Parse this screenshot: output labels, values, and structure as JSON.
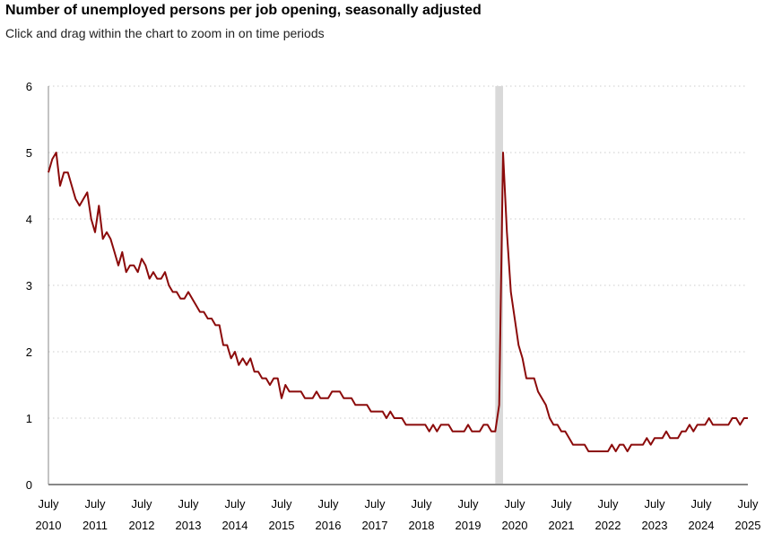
{
  "header": {
    "title": "Number of unemployed persons per job opening, seasonally adjusted",
    "subtitle": "Click and drag within the chart to zoom in on time periods"
  },
  "colors": {
    "line": "#8b0a0a",
    "recession": "#d9d9d9",
    "grid": "#cccccc",
    "axis": "#888888"
  },
  "chart_data": {
    "type": "line",
    "title": "Number of unemployed persons per job opening, seasonally adjusted",
    "subtitle": "Click and drag within the chart to zoom in on time periods",
    "xlabel": "",
    "ylabel": "",
    "ylim": [
      0,
      6
    ],
    "xlim": [
      "2010-07",
      "2025-07"
    ],
    "grid": true,
    "grid_style": "dotted horizontal",
    "legend": "none",
    "yticks": [
      "0",
      "1",
      "2",
      "3",
      "4",
      "5",
      "6"
    ],
    "xticks": [
      {
        "month": "July",
        "year": "2010",
        "date": "2010-07"
      },
      {
        "month": "July",
        "year": "2011",
        "date": "2011-07"
      },
      {
        "month": "July",
        "year": "2012",
        "date": "2012-07"
      },
      {
        "month": "July",
        "year": "2013",
        "date": "2013-07"
      },
      {
        "month": "July",
        "year": "2014",
        "date": "2014-07"
      },
      {
        "month": "July",
        "year": "2015",
        "date": "2015-07"
      },
      {
        "month": "July",
        "year": "2016",
        "date": "2016-07"
      },
      {
        "month": "July",
        "year": "2017",
        "date": "2017-07"
      },
      {
        "month": "July",
        "year": "2018",
        "date": "2018-07"
      },
      {
        "month": "July",
        "year": "2019",
        "date": "2019-07"
      },
      {
        "month": "July",
        "year": "2020",
        "date": "2020-07"
      },
      {
        "month": "July",
        "year": "2021",
        "date": "2021-07"
      },
      {
        "month": "July",
        "year": "2022",
        "date": "2022-07"
      },
      {
        "month": "July",
        "year": "2023",
        "date": "2023-07"
      },
      {
        "month": "July",
        "year": "2024",
        "date": "2024-07"
      },
      {
        "month": "July",
        "year": "2025",
        "date": "2025-07"
      }
    ],
    "recession_band": {
      "start": "2020-02",
      "end": "2020-04"
    },
    "series": [
      {
        "x": [
          "2010-07",
          "2010-08",
          "2010-09",
          "2010-10",
          "2010-11",
          "2010-12",
          "2011-01",
          "2011-02",
          "2011-03",
          "2011-04",
          "2011-05",
          "2011-06",
          "2011-07",
          "2011-08",
          "2011-09",
          "2011-10",
          "2011-11",
          "2011-12",
          "2012-01",
          "2012-02",
          "2012-03",
          "2012-04",
          "2012-05",
          "2012-06",
          "2012-07",
          "2012-08",
          "2012-09",
          "2012-10",
          "2012-11",
          "2012-12",
          "2013-01",
          "2013-02",
          "2013-03",
          "2013-04",
          "2013-05",
          "2013-06",
          "2013-07",
          "2013-08",
          "2013-09",
          "2013-10",
          "2013-11",
          "2013-12",
          "2014-01",
          "2014-02",
          "2014-03",
          "2014-04",
          "2014-05",
          "2014-06",
          "2014-07",
          "2014-08",
          "2014-09",
          "2014-10",
          "2014-11",
          "2014-12",
          "2015-01",
          "2015-02",
          "2015-03",
          "2015-04",
          "2015-05",
          "2015-06",
          "2015-07",
          "2015-08",
          "2015-09",
          "2015-10",
          "2015-11",
          "2015-12",
          "2016-01",
          "2016-02",
          "2016-03",
          "2016-04",
          "2016-05",
          "2016-06",
          "2016-07",
          "2016-08",
          "2016-09",
          "2016-10",
          "2016-11",
          "2016-12",
          "2017-01",
          "2017-02",
          "2017-03",
          "2017-04",
          "2017-05",
          "2017-06",
          "2017-07",
          "2017-08",
          "2017-09",
          "2017-10",
          "2017-11",
          "2017-12",
          "2018-01",
          "2018-02",
          "2018-03",
          "2018-04",
          "2018-05",
          "2018-06",
          "2018-07",
          "2018-08",
          "2018-09",
          "2018-10",
          "2018-11",
          "2018-12",
          "2019-01",
          "2019-02",
          "2019-03",
          "2019-04",
          "2019-05",
          "2019-06",
          "2019-07",
          "2019-08",
          "2019-09",
          "2019-10",
          "2019-11",
          "2019-12",
          "2020-01",
          "2020-02",
          "2020-03",
          "2020-04",
          "2020-05",
          "2020-06",
          "2020-07",
          "2020-08",
          "2020-09",
          "2020-10",
          "2020-11",
          "2020-12",
          "2021-01",
          "2021-02",
          "2021-03",
          "2021-04",
          "2021-05",
          "2021-06",
          "2021-07",
          "2021-08",
          "2021-09",
          "2021-10",
          "2021-11",
          "2021-12",
          "2022-01",
          "2022-02",
          "2022-03",
          "2022-04",
          "2022-05",
          "2022-06",
          "2022-07",
          "2022-08",
          "2022-09",
          "2022-10",
          "2022-11",
          "2022-12",
          "2023-01",
          "2023-02",
          "2023-03",
          "2023-04",
          "2023-05",
          "2023-06",
          "2023-07",
          "2023-08",
          "2023-09",
          "2023-10",
          "2023-11",
          "2023-12",
          "2024-01",
          "2024-02",
          "2024-03",
          "2024-04",
          "2024-05",
          "2024-06",
          "2024-07",
          "2024-08",
          "2024-09",
          "2024-10",
          "2024-11",
          "2024-12",
          "2025-01",
          "2025-02",
          "2025-03",
          "2025-04",
          "2025-05",
          "2025-06",
          "2025-07"
        ],
        "values": [
          4.7,
          4.9,
          5.0,
          4.5,
          4.7,
          4.7,
          4.5,
          4.3,
          4.2,
          4.3,
          4.4,
          4.0,
          3.8,
          4.2,
          3.7,
          3.8,
          3.7,
          3.5,
          3.3,
          3.5,
          3.2,
          3.3,
          3.3,
          3.2,
          3.4,
          3.3,
          3.1,
          3.2,
          3.1,
          3.1,
          3.2,
          3.0,
          2.9,
          2.9,
          2.8,
          2.8,
          2.9,
          2.8,
          2.7,
          2.6,
          2.6,
          2.5,
          2.5,
          2.4,
          2.4,
          2.1,
          2.1,
          1.9,
          2.0,
          1.8,
          1.9,
          1.8,
          1.9,
          1.7,
          1.7,
          1.6,
          1.6,
          1.5,
          1.6,
          1.6,
          1.3,
          1.5,
          1.4,
          1.4,
          1.4,
          1.4,
          1.3,
          1.3,
          1.3,
          1.4,
          1.3,
          1.3,
          1.3,
          1.4,
          1.4,
          1.4,
          1.3,
          1.3,
          1.3,
          1.2,
          1.2,
          1.2,
          1.2,
          1.1,
          1.1,
          1.1,
          1.1,
          1.0,
          1.1,
          1.0,
          1.0,
          1.0,
          0.9,
          0.9,
          0.9,
          0.9,
          0.9,
          0.9,
          0.8,
          0.9,
          0.8,
          0.9,
          0.9,
          0.9,
          0.8,
          0.8,
          0.8,
          0.8,
          0.9,
          0.8,
          0.8,
          0.8,
          0.9,
          0.9,
          0.8,
          0.8,
          1.2,
          5.0,
          3.8,
          2.9,
          2.5,
          2.1,
          1.9,
          1.6,
          1.6,
          1.6,
          1.4,
          1.3,
          1.2,
          1.0,
          0.9,
          0.9,
          0.8,
          0.8,
          0.7,
          0.6,
          0.6,
          0.6,
          0.6,
          0.5,
          0.5,
          0.5,
          0.5,
          0.5,
          0.5,
          0.6,
          0.5,
          0.6,
          0.6,
          0.5,
          0.6,
          0.6,
          0.6,
          0.6,
          0.7,
          0.6,
          0.7,
          0.7,
          0.7,
          0.8,
          0.7,
          0.7,
          0.7,
          0.8,
          0.8,
          0.9,
          0.8,
          0.9,
          0.9,
          0.9,
          1.0,
          0.9,
          0.9,
          0.9,
          0.9,
          0.9,
          1.0,
          1.0,
          0.9,
          1.0,
          1.0
        ]
      }
    ]
  }
}
